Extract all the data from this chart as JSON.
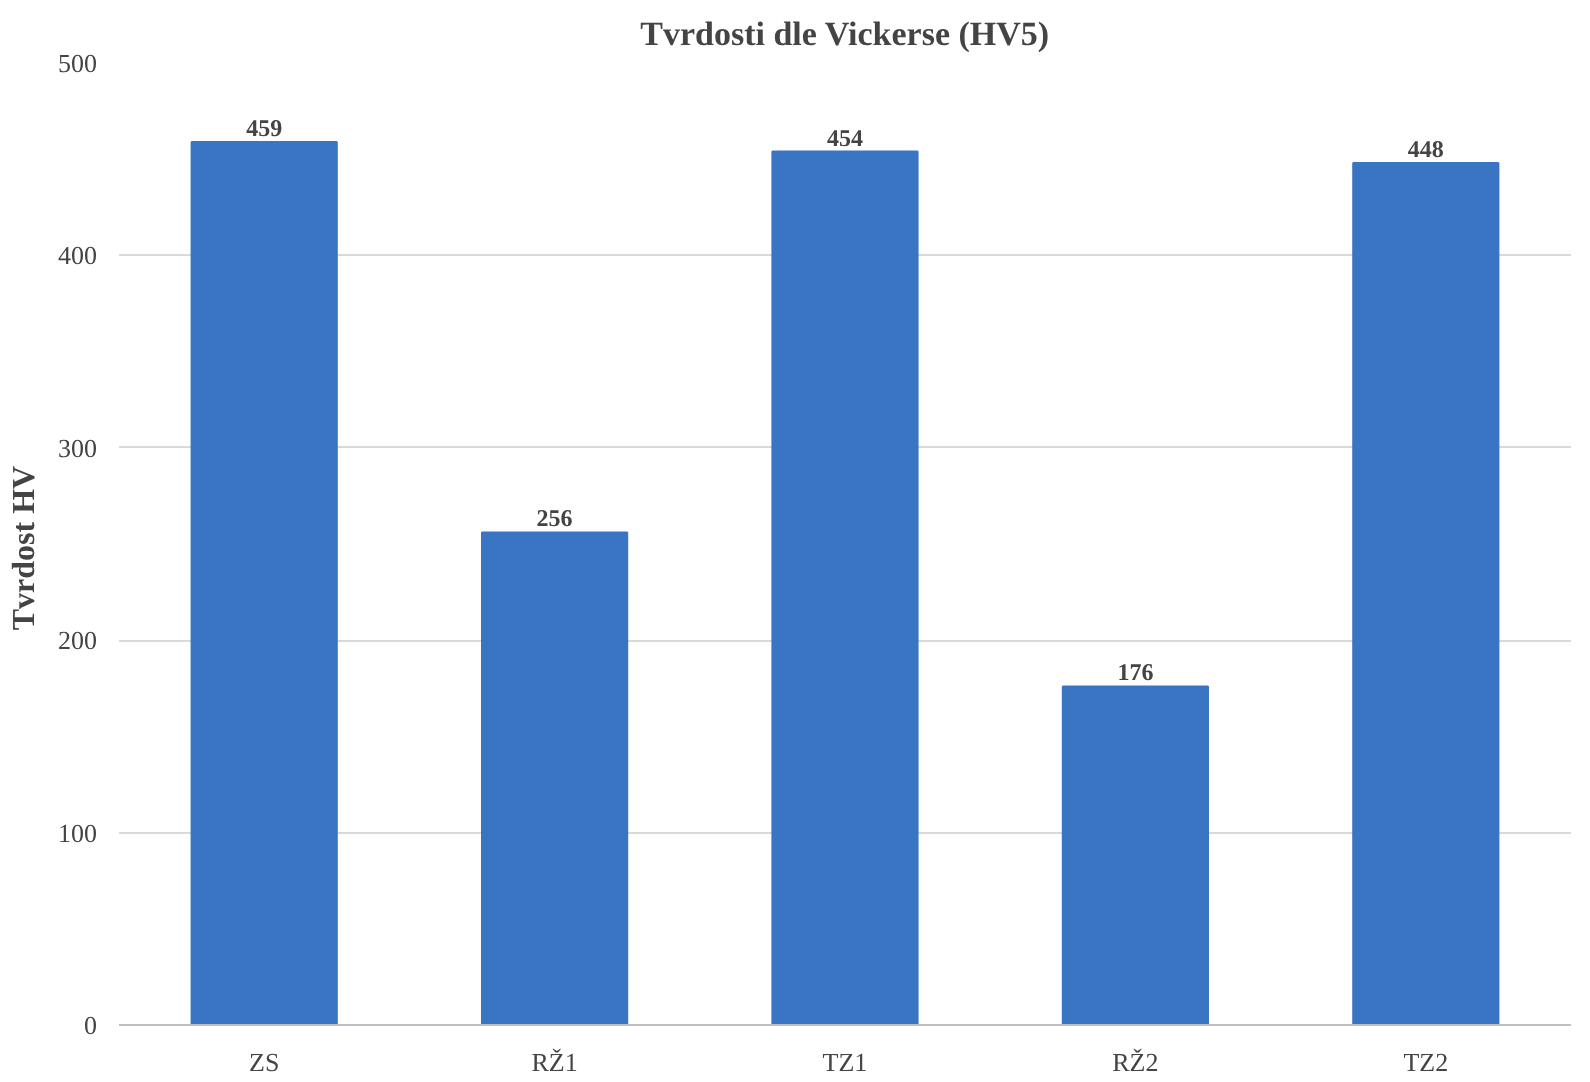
{
  "chart_data": {
    "type": "bar",
    "title": "Tvrdosti dle Vickerse (HV5)",
    "ylabel": "Tvrdost  HV",
    "categories": [
      "ZS",
      "RŽ1",
      "TZ1",
      "RŽ2",
      "TZ2"
    ],
    "values": [
      459,
      256,
      454,
      176,
      448
    ],
    "color": "#3a75c4",
    "ylim": [
      0,
      500
    ],
    "yticks": [
      0,
      100,
      200,
      300,
      400,
      500
    ],
    "grid": "y",
    "data_labels": true
  }
}
